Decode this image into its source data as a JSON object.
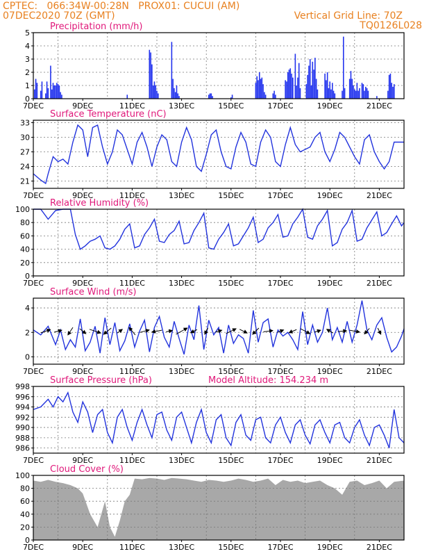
{
  "header": {
    "line1": "CPTEC:   066:34W-00:28N   PROX01: CUCUI (AM)",
    "line2": "07DEC2020 70Z (GMT)",
    "grid_note": "Vertical Grid Line: 70Z",
    "run_code": "TQ0126L028"
  },
  "colors": {
    "header": "#e8801f",
    "panel_title": "#e0187a",
    "series": "#2233dd",
    "bars": "#2233ee",
    "cloud": "#a8a8a8",
    "arrows": "#000000"
  },
  "x_tick_labels": [
    "7DEC",
    "9DEC",
    "11DEC",
    "13DEC",
    "15DEC",
    "17DEC",
    "19DEC",
    "21DEC"
  ],
  "x_tick_days": [
    0,
    2,
    4,
    6,
    8,
    10,
    12,
    14
  ],
  "chart_data": [
    {
      "id": "precip",
      "type": "bar",
      "title": "Precipitation (mm/h)",
      "ylim": [
        0,
        5
      ],
      "yticks": [
        0,
        1,
        2,
        3,
        4,
        5
      ],
      "xlim_days": [
        0,
        15
      ],
      "grid": true,
      "x_days": [
        0.05,
        0.1,
        0.15,
        0.3,
        0.35,
        0.5,
        0.55,
        0.6,
        0.7,
        0.75,
        0.8,
        0.85,
        0.9,
        0.95,
        1.0,
        1.05,
        1.1,
        1.15,
        3.8,
        4.7,
        4.75,
        4.8,
        4.85,
        4.9,
        4.95,
        5.0,
        5.05,
        5.6,
        5.65,
        5.7,
        5.75,
        5.8,
        5.85,
        5.9,
        7.1,
        7.15,
        7.2,
        7.25,
        8.0,
        8.05,
        9.0,
        9.05,
        9.1,
        9.15,
        9.2,
        9.25,
        9.3,
        9.35,
        9.4,
        9.7,
        9.75,
        9.8,
        10.2,
        10.25,
        10.3,
        10.35,
        10.4,
        10.45,
        10.5,
        10.6,
        10.65,
        10.7,
        10.75,
        10.8,
        11.05,
        11.1,
        11.15,
        11.2,
        11.25,
        11.3,
        11.35,
        11.4,
        11.45,
        11.5,
        11.8,
        11.85,
        11.9,
        11.95,
        12.0,
        12.05,
        12.1,
        12.15,
        12.2,
        12.5,
        12.55,
        12.6,
        12.8,
        12.85,
        12.9,
        12.95,
        13.0,
        13.05,
        13.1,
        13.15,
        13.2,
        13.3,
        13.35,
        13.4,
        13.45,
        13.5,
        13.55,
        13.9,
        14.35,
        14.4,
        14.45,
        14.5,
        14.55,
        14.6
      ],
      "values": [
        0.7,
        1.5,
        1.2,
        0.6,
        1.3,
        0.4,
        1.3,
        0.8,
        2.5,
        0.7,
        1.2,
        1.0,
        1.0,
        1.2,
        1.1,
        1.0,
        0.5,
        0.3,
        0.3,
        3.7,
        3.5,
        2.6,
        1.0,
        1.3,
        1.0,
        0.6,
        0.4,
        4.3,
        1.5,
        0.8,
        0.5,
        1.0,
        0.4,
        0.2,
        0.3,
        0.4,
        0.4,
        0.2,
        0.1,
        0.3,
        1.2,
        1.7,
        1.4,
        2.0,
        1.5,
        1.6,
        1.1,
        0.5,
        0.3,
        0.4,
        0.6,
        0.3,
        1.4,
        1.3,
        2.0,
        2.2,
        2.3,
        1.9,
        1.6,
        3.4,
        1.0,
        1.6,
        2.7,
        0.8,
        1.1,
        1.8,
        2.5,
        3.0,
        1.0,
        2.8,
        2.2,
        3.1,
        1.5,
        0.7,
        1.9,
        1.4,
        2.0,
        0.8,
        1.3,
        0.7,
        1.2,
        0.6,
        0.4,
        0.6,
        4.7,
        0.8,
        1.5,
        2.1,
        1.5,
        1.0,
        0.7,
        0.6,
        1.2,
        0.6,
        0.8,
        1.2,
        1.1,
        0.6,
        0.9,
        0.8,
        0.6,
        0.2,
        0.6,
        1.8,
        1.9,
        1.2,
        0.9,
        1.1
      ]
    },
    {
      "id": "temp",
      "type": "line",
      "title": "Surface Temperature (nC)",
      "ylim": [
        19.5,
        33.5
      ],
      "yticks": [
        21,
        24,
        27,
        30,
        33
      ],
      "xlim_days": [
        0,
        15
      ],
      "grid": true,
      "x_days": [
        0,
        0.3,
        0.5,
        0.6,
        0.8,
        1.0,
        1.2,
        1.4,
        1.6,
        1.8,
        2.0,
        2.2,
        2.4,
        2.6,
        2.8,
        3.0,
        3.2,
        3.4,
        3.6,
        3.8,
        4.0,
        4.2,
        4.4,
        4.6,
        4.8,
        5.0,
        5.2,
        5.4,
        5.6,
        5.8,
        6.0,
        6.2,
        6.4,
        6.6,
        6.8,
        7.0,
        7.2,
        7.4,
        7.6,
        7.8,
        8.0,
        8.2,
        8.4,
        8.6,
        8.8,
        9.0,
        9.2,
        9.4,
        9.6,
        9.8,
        10.0,
        10.2,
        10.4,
        10.6,
        10.8,
        11.0,
        11.2,
        11.4,
        11.6,
        11.8,
        12.0,
        12.2,
        12.4,
        12.6,
        12.8,
        13.0,
        13.2,
        13.4,
        13.6,
        13.8,
        14.0,
        14.2,
        14.4,
        14.6,
        14.8,
        15.0
      ],
      "values": [
        22.5,
        21.2,
        20.5,
        22.5,
        26.0,
        25.0,
        25.5,
        24.5,
        29.0,
        32.5,
        31.5,
        26.0,
        32.0,
        32.5,
        28.0,
        24.5,
        27.0,
        31.5,
        30.5,
        27.5,
        24.5,
        29.0,
        31.0,
        28.0,
        24.0,
        28.0,
        30.5,
        29.5,
        25.0,
        24.0,
        29.0,
        32.0,
        29.5,
        24.0,
        23.0,
        26.5,
        30.5,
        31.5,
        27.0,
        24.0,
        23.5,
        28.0,
        31.0,
        29.0,
        24.5,
        24.0,
        29.0,
        31.5,
        30.0,
        25.0,
        24.0,
        28.5,
        32.0,
        28.5,
        27.0,
        27.5,
        28.0,
        30.0,
        31.0,
        27.0,
        25.0,
        27.5,
        31.0,
        30.0,
        28.0,
        26.0,
        24.5,
        29.5,
        30.5,
        27.0,
        25.0,
        23.5,
        25.0,
        29.0,
        29.0,
        29.0
      ]
    },
    {
      "id": "rh",
      "type": "line",
      "title": "Relative Humidity (%)",
      "ylim": [
        0,
        100
      ],
      "yticks": [
        0,
        20,
        40,
        60,
        80,
        100
      ],
      "xlim_days": [
        0,
        15
      ],
      "grid": true,
      "x_days": [
        0,
        0.3,
        0.6,
        0.9,
        1.2,
        1.5,
        1.7,
        1.9,
        2.1,
        2.3,
        2.5,
        2.7,
        2.9,
        3.1,
        3.3,
        3.5,
        3.7,
        3.9,
        4.1,
        4.3,
        4.5,
        4.7,
        4.9,
        5.1,
        5.3,
        5.5,
        5.7,
        5.9,
        6.1,
        6.3,
        6.5,
        6.7,
        6.9,
        7.1,
        7.3,
        7.5,
        7.7,
        7.9,
        8.1,
        8.3,
        8.5,
        8.7,
        8.9,
        9.1,
        9.3,
        9.5,
        9.7,
        9.9,
        10.1,
        10.3,
        10.5,
        10.7,
        10.9,
        11.1,
        11.3,
        11.5,
        11.7,
        11.9,
        12.1,
        12.3,
        12.5,
        12.7,
        12.9,
        13.1,
        13.3,
        13.5,
        13.7,
        13.9,
        14.1,
        14.3,
        14.5,
        14.7,
        14.9,
        15.0
      ],
      "values": [
        100,
        100,
        85,
        98,
        100,
        100,
        62,
        40,
        45,
        52,
        55,
        60,
        42,
        40,
        45,
        55,
        70,
        78,
        42,
        45,
        62,
        72,
        85,
        52,
        50,
        62,
        68,
        82,
        48,
        50,
        68,
        80,
        94,
        42,
        40,
        55,
        65,
        78,
        45,
        48,
        60,
        72,
        88,
        50,
        55,
        72,
        80,
        92,
        58,
        60,
        78,
        88,
        100,
        58,
        55,
        75,
        85,
        98,
        45,
        50,
        70,
        80,
        98,
        52,
        55,
        72,
        84,
        96,
        60,
        65,
        78,
        90,
        75,
        80
      ]
    },
    {
      "id": "wind",
      "type": "line",
      "title": "Surface Wind (m/s)",
      "ylim": [
        -0.6,
        4.8
      ],
      "yticks": [
        0,
        2,
        4
      ],
      "xlim_days": [
        0,
        15
      ],
      "grid": true,
      "x_days": [
        0,
        0.3,
        0.6,
        0.9,
        1.1,
        1.3,
        1.5,
        1.7,
        1.9,
        2.1,
        2.3,
        2.5,
        2.7,
        2.9,
        3.1,
        3.3,
        3.5,
        3.7,
        3.9,
        4.1,
        4.3,
        4.5,
        4.7,
        4.9,
        5.1,
        5.3,
        5.5,
        5.7,
        5.9,
        6.1,
        6.3,
        6.5,
        6.7,
        6.9,
        7.1,
        7.3,
        7.5,
        7.7,
        7.9,
        8.1,
        8.3,
        8.5,
        8.7,
        8.9,
        9.1,
        9.3,
        9.5,
        9.7,
        9.9,
        10.1,
        10.3,
        10.5,
        10.7,
        10.9,
        11.1,
        11.3,
        11.5,
        11.7,
        11.9,
        12.1,
        12.3,
        12.5,
        12.7,
        12.9,
        13.1,
        13.3,
        13.5,
        13.7,
        13.9,
        14.1,
        14.3,
        14.5,
        14.7,
        14.9,
        15.0
      ],
      "values": [
        2.2,
        1.8,
        2.5,
        1.0,
        2.2,
        0.6,
        1.4,
        0.8,
        3.1,
        0.5,
        1.2,
        2.5,
        0.3,
        3.2,
        1.0,
        2.8,
        0.5,
        1.3,
        2.7,
        0.8,
        2.1,
        3.0,
        0.4,
        2.4,
        3.3,
        1.6,
        0.8,
        2.9,
        1.5,
        0.2,
        2.6,
        1.4,
        4.2,
        0.6,
        3.0,
        1.8,
        2.4,
        0.3,
        2.6,
        1.1,
        1.8,
        1.5,
        0.3,
        3.8,
        1.2,
        2.8,
        3.1,
        0.8,
        2.2,
        1.7,
        2.0,
        1.4,
        0.6,
        3.7,
        1.0,
        2.6,
        1.2,
        2.0,
        4.0,
        1.4,
        2.4,
        1.2,
        2.9,
        1.2,
        2.6,
        4.6,
        2.2,
        1.4,
        2.6,
        3.2,
        1.6,
        0.4,
        0.8,
        1.7,
        2.3
      ]
    },
    {
      "id": "pressure",
      "type": "line",
      "title": "Surface Pressure (hPa)",
      "annotation": "Model Altitude: 154.234 m",
      "ylim": [
        985,
        998
      ],
      "yticks": [
        986,
        988,
        990,
        992,
        994,
        996,
        998
      ],
      "xlim_days": [
        0,
        15
      ],
      "grid": true,
      "x_days": [
        0,
        0.3,
        0.6,
        0.8,
        1.0,
        1.2,
        1.4,
        1.6,
        1.8,
        2.0,
        2.2,
        2.4,
        2.6,
        2.8,
        3.0,
        3.2,
        3.4,
        3.6,
        3.8,
        4.0,
        4.2,
        4.4,
        4.6,
        4.8,
        5.0,
        5.2,
        5.4,
        5.6,
        5.8,
        6.0,
        6.2,
        6.4,
        6.6,
        6.8,
        7.0,
        7.2,
        7.4,
        7.6,
        7.8,
        8.0,
        8.2,
        8.4,
        8.6,
        8.8,
        9.0,
        9.2,
        9.4,
        9.6,
        9.8,
        10.0,
        10.2,
        10.4,
        10.6,
        10.8,
        11.0,
        11.2,
        11.4,
        11.6,
        11.8,
        12.0,
        12.2,
        12.4,
        12.6,
        12.8,
        13.0,
        13.2,
        13.4,
        13.6,
        13.8,
        14.0,
        14.2,
        14.4,
        14.6,
        14.8,
        15.0
      ],
      "values": [
        993.5,
        994.0,
        995.5,
        994.0,
        996.0,
        995.0,
        996.8,
        993.0,
        991.0,
        995.0,
        993.0,
        989.0,
        992.5,
        993.5,
        989.0,
        987.0,
        992.0,
        993.5,
        990.0,
        987.5,
        991.0,
        993.5,
        990.5,
        988.0,
        992.5,
        993.0,
        989.5,
        987.5,
        992.0,
        993.0,
        990.0,
        987.0,
        991.0,
        993.5,
        989.0,
        987.0,
        991.5,
        992.5,
        988.0,
        986.5,
        991.0,
        992.5,
        988.5,
        987.5,
        991.5,
        992.0,
        988.0,
        987.0,
        990.5,
        992.0,
        989.0,
        987.0,
        990.5,
        991.5,
        988.5,
        986.8,
        990.5,
        991.5,
        989.0,
        987.0,
        990.5,
        991.0,
        988.0,
        987.0,
        990.0,
        991.5,
        988.5,
        986.5,
        990.0,
        990.5,
        988.5,
        986.0,
        993.5,
        988.0,
        987.0
      ]
    },
    {
      "id": "cloud",
      "type": "area",
      "title": "Cloud Cover (%)",
      "ylim": [
        0,
        100
      ],
      "yticks": [
        0,
        20,
        40,
        60,
        80,
        100
      ],
      "xlim_days": [
        0,
        15
      ],
      "grid": true,
      "x_days": [
        0,
        0.3,
        0.6,
        0.9,
        1.2,
        1.5,
        1.8,
        2.0,
        2.3,
        2.6,
        2.9,
        3.1,
        3.3,
        3.5,
        3.7,
        3.9,
        4.1,
        4.4,
        4.7,
        5.0,
        5.3,
        5.6,
        5.9,
        6.2,
        6.5,
        6.8,
        7.1,
        7.4,
        7.7,
        8.0,
        8.3,
        8.6,
        8.9,
        9.2,
        9.5,
        9.8,
        10.1,
        10.4,
        10.7,
        11.0,
        11.3,
        11.6,
        11.9,
        12.2,
        12.5,
        12.8,
        13.1,
        13.4,
        13.7,
        14.0,
        14.3,
        14.6,
        15.0
      ],
      "values": [
        92,
        90,
        93,
        90,
        88,
        85,
        80,
        72,
        40,
        20,
        60,
        20,
        5,
        30,
        60,
        70,
        95,
        94,
        96,
        95,
        93,
        96,
        95,
        94,
        92,
        90,
        93,
        92,
        90,
        92,
        95,
        93,
        90,
        92,
        95,
        85,
        93,
        90,
        92,
        88,
        90,
        92,
        85,
        80,
        70,
        90,
        92,
        85,
        88,
        92,
        80,
        90,
        92
      ]
    }
  ],
  "wind_vectors": {
    "magnitude_units": "m/s",
    "x_days": [
      0.5,
      1.0,
      1.5,
      2.0,
      2.5,
      3.0,
      3.5,
      4.0,
      4.5,
      5.0,
      5.5,
      6.0,
      6.5,
      7.0,
      7.5,
      8.0,
      8.5,
      9.0,
      9.5,
      10.0,
      10.5,
      11.0,
      11.5,
      12.0,
      12.5,
      13.0,
      13.5,
      14.0
    ],
    "u": [
      1.5,
      1.2,
      -0.8,
      1.0,
      1.8,
      -1.2,
      0.8,
      -1.0,
      1.5,
      -1.6,
      1.0,
      1.8,
      -1.0,
      -0.5,
      1.0,
      1.6,
      1.2,
      -1.0,
      1.5,
      1.0,
      -1.2,
      1.5,
      1.0,
      -1.0,
      1.4,
      1.6,
      -0.8,
      0.5
    ],
    "v": [
      0.5,
      0.3,
      -1.2,
      -0.8,
      -0.6,
      -1.0,
      0.6,
      1.2,
      0.4,
      -0.3,
      0.2,
      1.0,
      -0.5,
      -1.0,
      0.3,
      0.8,
      -0.6,
      -1.0,
      0.2,
      0.4,
      -0.5,
      -0.8,
      0.3,
      0.6,
      0.1,
      -0.3,
      -0.9,
      -1.0
    ]
  }
}
